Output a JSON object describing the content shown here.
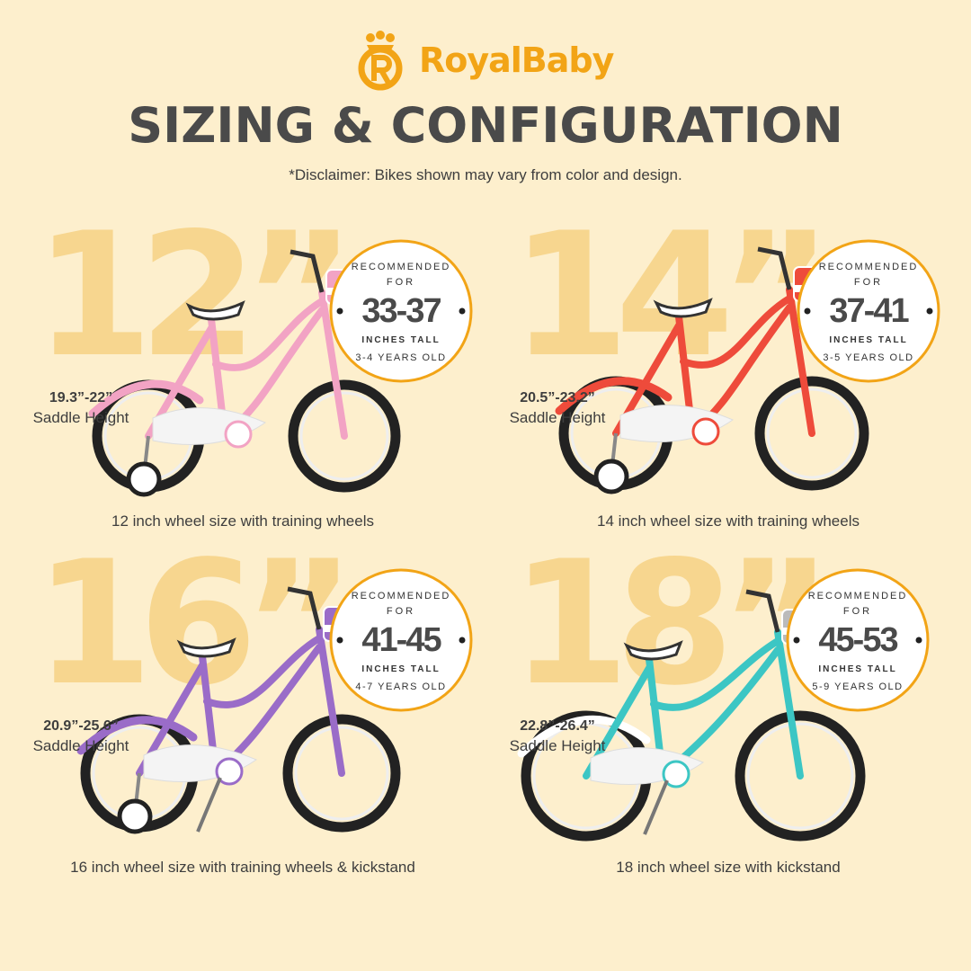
{
  "brand": {
    "name": "RoyalBaby",
    "color": "#f2a416",
    "icon": "crown-r-logo-icon"
  },
  "title": "SIZING & CONFIGURATION",
  "disclaimer": "*Disclaimer: Bikes shown may vary from color and design.",
  "badge_labels": {
    "recommended": "RECOMMENDED",
    "for": "FOR",
    "inches_tall": "INCHES TALL"
  },
  "sizes": [
    {
      "size": "12”",
      "saddle_height": "19.3”-22”",
      "saddle_label": "Saddle Height",
      "height_range": "33-37",
      "age": "3-4 YEARS OLD",
      "caption": "12 inch wheel size with training wheels",
      "frame_color": "#f2a3c4",
      "training_wheels": true,
      "kickstand": false
    },
    {
      "size": "14”",
      "saddle_height": "20.5”-23.2”",
      "saddle_label": "Saddle Height",
      "height_range": "37-41",
      "age": "3-5 YEARS OLD",
      "caption": "14 inch wheel size with training wheels",
      "frame_color": "#ee4b3b",
      "training_wheels": true,
      "kickstand": false
    },
    {
      "size": "16”",
      "saddle_height": "20.9”-25.6”",
      "saddle_label": "Saddle Height",
      "height_range": "41-45",
      "age": "4-7 YEARS OLD",
      "caption": "16 inch wheel size with training wheels & kickstand",
      "frame_color": "#9a6cc8",
      "training_wheels": true,
      "kickstand": true
    },
    {
      "size": "18”",
      "saddle_height": "22.8”-26.4”",
      "saddle_label": "Saddle Height",
      "height_range": "45-53",
      "age": "5-9 YEARS OLD",
      "caption": "18 inch wheel size with kickstand",
      "frame_color": "#3cc6c4",
      "training_wheels": false,
      "kickstand": true
    }
  ]
}
